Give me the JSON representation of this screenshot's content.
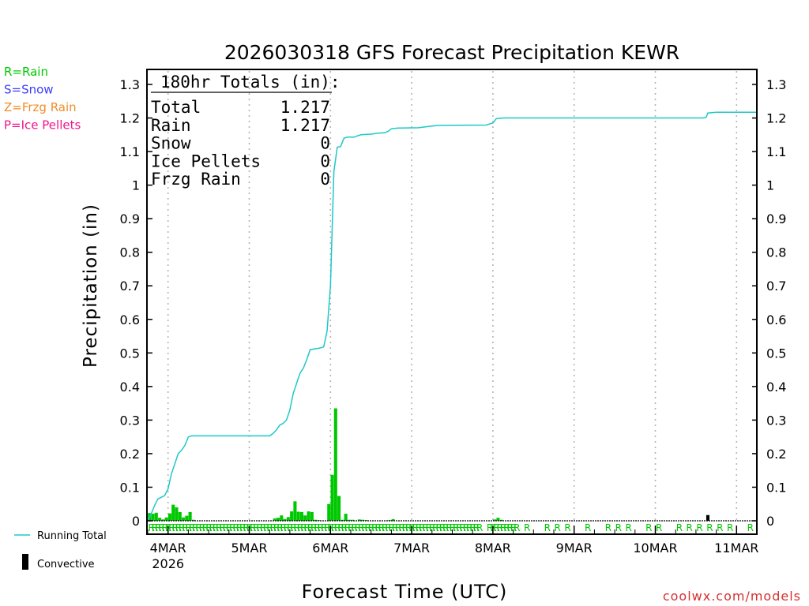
{
  "chart_data": {
    "type": "bar+line",
    "title": "2026030318 GFS Forecast Precipitation KEWR",
    "ylabel": "Precipitation (in)",
    "xlabel": "Forecast Time (UTC)",
    "ylim": [
      0,
      1.3
    ],
    "yticks": [
      "0",
      "0.1",
      "0.2",
      "0.3",
      "0.4",
      "0.5",
      "0.6",
      "0.7",
      "0.8",
      "0.9",
      "1",
      "1.1",
      "1.2",
      "1.3"
    ],
    "xlim_hours": [
      0,
      180
    ],
    "xticks": [
      {
        "label": "4MAR",
        "sub": "2026",
        "hour": 6
      },
      {
        "label": "5MAR",
        "hour": 30
      },
      {
        "label": "6MAR",
        "hour": 54
      },
      {
        "label": "7MAR",
        "hour": 78
      },
      {
        "label": "8MAR",
        "hour": 102
      },
      {
        "label": "9MAR",
        "hour": 126
      },
      {
        "label": "10MAR",
        "hour": 150
      },
      {
        "label": "11MAR",
        "hour": 174
      }
    ],
    "precip_type_legend": [
      {
        "label": "R=Rain",
        "color": "#00c800"
      },
      {
        "label": "S=Snow",
        "color": "#3c3cff"
      },
      {
        "label": "Z=Frzg Rain",
        "color": "#f08c28"
      },
      {
        "label": "P=Ice Pellets",
        "color": "#f0148c"
      }
    ],
    "series_legend": [
      {
        "label": "Running Total",
        "color": "#1ec8c8"
      },
      {
        "label": "Convective",
        "color": "#000000"
      }
    ],
    "totals": {
      "header": "180hr Totals (in):",
      "rows": [
        {
          "label": "Total",
          "value": "1.217"
        },
        {
          "label": "Rain",
          "value": "1.217"
        },
        {
          "label": "Snow",
          "value": "0"
        },
        {
          "label": "Ice Pellets",
          "value": "0"
        },
        {
          "label": "Frzg Rain",
          "value": "0"
        }
      ]
    },
    "running_total": [
      [
        0,
        0.0
      ],
      [
        1,
        0.02
      ],
      [
        2,
        0.045
      ],
      [
        3,
        0.065
      ],
      [
        4,
        0.07
      ],
      [
        5,
        0.075
      ],
      [
        6,
        0.095
      ],
      [
        7,
        0.14
      ],
      [
        8,
        0.17
      ],
      [
        9,
        0.2
      ],
      [
        10,
        0.21
      ],
      [
        11,
        0.225
      ],
      [
        12,
        0.25
      ],
      [
        13,
        0.253
      ],
      [
        30,
        0.253
      ],
      [
        36,
        0.253
      ],
      [
        37,
        0.26
      ],
      [
        38,
        0.27
      ],
      [
        39,
        0.285
      ],
      [
        40,
        0.29
      ],
      [
        41,
        0.3
      ],
      [
        42,
        0.33
      ],
      [
        43,
        0.38
      ],
      [
        44,
        0.41
      ],
      [
        45,
        0.44
      ],
      [
        46,
        0.455
      ],
      [
        47,
        0.48
      ],
      [
        48,
        0.51
      ],
      [
        50,
        0.513
      ],
      [
        51,
        0.515
      ],
      [
        52,
        0.518
      ],
      [
        53,
        0.565
      ],
      [
        54,
        0.7
      ],
      [
        55,
        1.04
      ],
      [
        56,
        1.113
      ],
      [
        57,
        1.115
      ],
      [
        58,
        1.14
      ],
      [
        59,
        1.143
      ],
      [
        61,
        1.143
      ],
      [
        62,
        1.147
      ],
      [
        63,
        1.15
      ],
      [
        66,
        1.152
      ],
      [
        68,
        1.155
      ],
      [
        70,
        1.156
      ],
      [
        71,
        1.16
      ],
      [
        72,
        1.168
      ],
      [
        74,
        1.17
      ],
      [
        80,
        1.171
      ],
      [
        83,
        1.175
      ],
      [
        86,
        1.178
      ],
      [
        100,
        1.179
      ],
      [
        102,
        1.185
      ],
      [
        103,
        1.198
      ],
      [
        105,
        1.2
      ],
      [
        150,
        1.2
      ],
      [
        164,
        1.2
      ],
      [
        165,
        1.202
      ],
      [
        165.5,
        1.215
      ],
      [
        168,
        1.217
      ],
      [
        180,
        1.217
      ]
    ],
    "bars": [
      {
        "hour": 0,
        "value": 0.023
      },
      {
        "hour": 1,
        "value": 0.021
      },
      {
        "hour": 2,
        "value": 0.024
      },
      {
        "hour": 3,
        "value": 0.009
      },
      {
        "hour": 4,
        "value": 0.004
      },
      {
        "hour": 5,
        "value": 0.01
      },
      {
        "hour": 6,
        "value": 0.022
      },
      {
        "hour": 7,
        "value": 0.048
      },
      {
        "hour": 8,
        "value": 0.04
      },
      {
        "hour": 9,
        "value": 0.026
      },
      {
        "hour": 10,
        "value": 0.01
      },
      {
        "hour": 11,
        "value": 0.015
      },
      {
        "hour": 12,
        "value": 0.026
      },
      {
        "hour": 13,
        "value": 0.003
      },
      {
        "hour": 37,
        "value": 0.007
      },
      {
        "hour": 38,
        "value": 0.009
      },
      {
        "hour": 39,
        "value": 0.016
      },
      {
        "hour": 40,
        "value": 0.005
      },
      {
        "hour": 41,
        "value": 0.011
      },
      {
        "hour": 42,
        "value": 0.028
      },
      {
        "hour": 43,
        "value": 0.058
      },
      {
        "hour": 44,
        "value": 0.027
      },
      {
        "hour": 45,
        "value": 0.026
      },
      {
        "hour": 46,
        "value": 0.016
      },
      {
        "hour": 47,
        "value": 0.028
      },
      {
        "hour": 48,
        "value": 0.026
      },
      {
        "hour": 49,
        "value": 0.003
      },
      {
        "hour": 50,
        "value": 0.002
      },
      {
        "hour": 53,
        "value": 0.05
      },
      {
        "hour": 54,
        "value": 0.137
      },
      {
        "hour": 55,
        "value": 0.335
      },
      {
        "hour": 56,
        "value": 0.074
      },
      {
        "hour": 57,
        "value": 0.003
      },
      {
        "hour": 58,
        "value": 0.021
      },
      {
        "hour": 59,
        "value": 0.003
      },
      {
        "hour": 60,
        "value": 0.003
      },
      {
        "hour": 62,
        "value": 0.004
      },
      {
        "hour": 63,
        "value": 0.003
      },
      {
        "hour": 64,
        "value": 0.002
      },
      {
        "hour": 71,
        "value": 0.002
      },
      {
        "hour": 72,
        "value": 0.005
      },
      {
        "hour": 102,
        "value": 0.004
      },
      {
        "hour": 103,
        "value": 0.009
      },
      {
        "hour": 104,
        "value": 0.003
      },
      {
        "hour": 165,
        "value": 0.017,
        "convective": true
      }
    ],
    "rain_marker_hours": [
      0,
      1,
      2,
      3,
      4,
      5,
      6,
      7,
      8,
      9,
      10,
      11,
      12,
      13,
      14,
      15,
      16,
      17,
      18,
      19,
      20,
      21,
      22,
      23,
      24,
      25,
      26,
      27,
      28,
      29,
      30,
      31,
      32,
      33,
      34,
      35,
      36,
      37,
      38,
      39,
      40,
      41,
      42,
      43,
      44,
      45,
      46,
      47,
      48,
      49,
      50,
      51,
      52,
      53,
      54,
      55,
      56,
      57,
      58,
      59,
      60,
      61,
      62,
      63,
      64,
      65,
      66,
      67,
      68,
      69,
      70,
      71,
      72,
      73,
      74,
      75,
      76,
      77,
      78,
      79,
      80,
      81,
      82,
      83,
      84,
      85,
      86,
      87,
      88,
      89,
      90,
      91,
      92,
      93,
      94,
      95,
      96,
      97,
      100,
      101,
      102,
      103,
      104,
      105,
      106,
      107,
      108,
      111,
      117,
      120,
      123,
      129,
      135,
      138,
      141,
      147,
      150,
      156,
      159,
      162,
      165,
      168,
      171,
      177
    ],
    "credit": "coolwx.com/models"
  }
}
